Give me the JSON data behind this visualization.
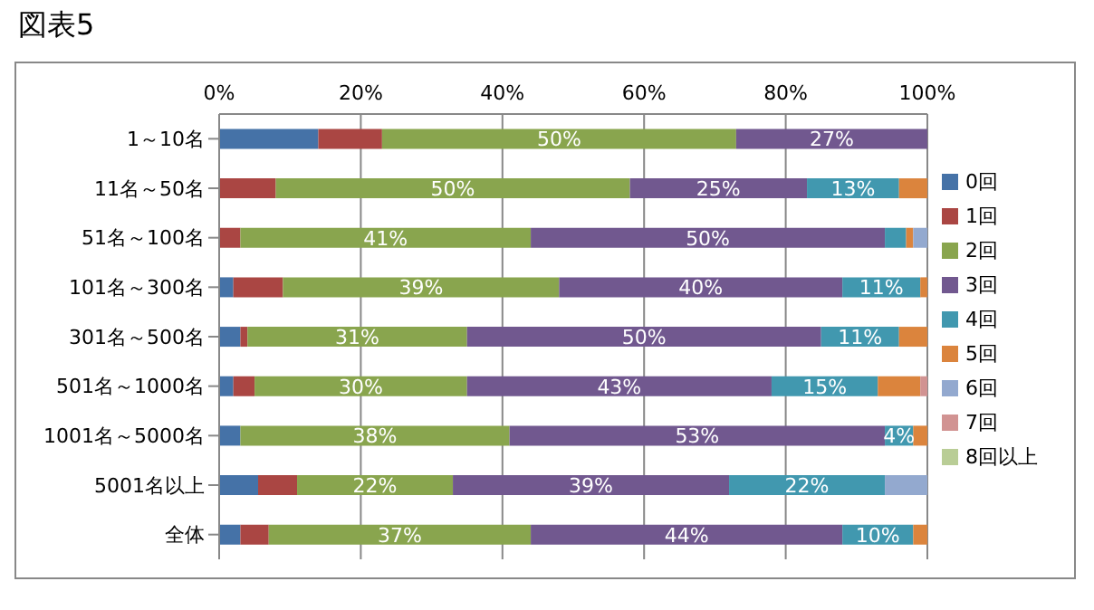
{
  "chart_data": {
    "type": "bar",
    "orientation": "horizontal",
    "stacked": true,
    "title": "図表5",
    "categories": [
      "1～10名",
      "11名～50名",
      "51名～100名",
      "101名～300名",
      "301名～500名",
      "501名～1000名",
      "1001名～5000名",
      "5001名以上",
      "全体"
    ],
    "series": [
      {
        "name": "0回",
        "color": "#4572a7",
        "values": [
          14,
          0,
          0,
          2,
          3,
          2,
          3,
          5.5,
          3
        ]
      },
      {
        "name": "1回",
        "color": "#aa4643",
        "values": [
          9,
          8,
          3,
          7,
          1,
          3,
          0,
          5.5,
          4
        ]
      },
      {
        "name": "2回",
        "color": "#89a54e",
        "values": [
          50,
          50,
          41,
          39,
          31,
          30,
          38,
          22,
          37
        ],
        "value_labels": [
          "50%",
          "50%",
          "41%",
          "39%",
          "31%",
          "30%",
          "38%",
          "22%",
          "37%"
        ]
      },
      {
        "name": "3回",
        "color": "#71588f",
        "values": [
          27,
          25,
          50,
          40,
          50,
          43,
          53,
          39,
          44
        ],
        "value_labels": [
          "27%",
          "25%",
          "50%",
          "40%",
          "50%",
          "43%",
          "53%",
          "39%",
          "44%"
        ]
      },
      {
        "name": "4回",
        "color": "#4198af",
        "values": [
          0,
          13,
          3,
          11,
          11,
          15,
          4,
          22,
          10
        ],
        "value_labels": [
          null,
          "13%",
          null,
          "11%",
          "11%",
          "15%",
          "4%",
          "22%",
          "10%"
        ]
      },
      {
        "name": "5回",
        "color": "#db843d",
        "values": [
          0,
          4,
          1,
          1,
          4,
          6,
          2,
          0,
          2
        ]
      },
      {
        "name": "6回",
        "color": "#93a9cf",
        "values": [
          0,
          0,
          2,
          0,
          0,
          0,
          0,
          6,
          0
        ]
      },
      {
        "name": "7回",
        "color": "#d19392",
        "values": [
          0,
          0,
          0,
          0,
          0,
          1,
          0,
          0,
          0
        ]
      },
      {
        "name": "8回以上",
        "color": "#b9cd96",
        "values": [
          0,
          0,
          0,
          0,
          0,
          0,
          0,
          0,
          0
        ]
      }
    ],
    "xlim": [
      0,
      100
    ],
    "xticks": [
      {
        "value": 0,
        "label": "0%"
      },
      {
        "value": 20,
        "label": "20%"
      },
      {
        "value": 40,
        "label": "40%"
      },
      {
        "value": 60,
        "label": "60%"
      },
      {
        "value": 80,
        "label": "80%"
      },
      {
        "value": 100,
        "label": "100%"
      }
    ],
    "grid": "x",
    "legend": "right"
  }
}
